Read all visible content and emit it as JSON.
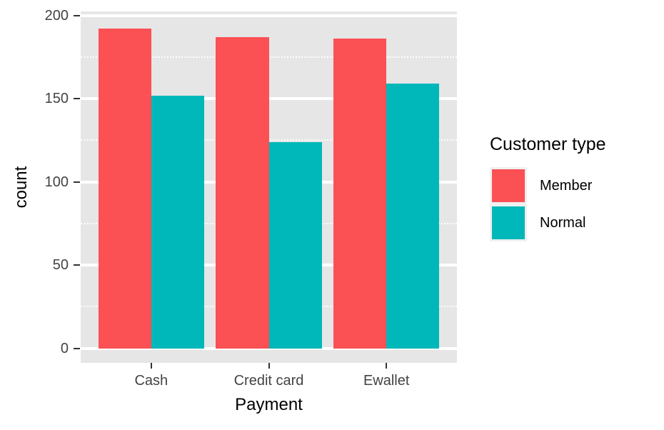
{
  "chart_data": {
    "type": "bar",
    "mode": "grouped",
    "title": "",
    "xlabel": "Payment",
    "ylabel": "count",
    "categories": [
      "Cash",
      "Credit card",
      "Ewallet"
    ],
    "series": [
      {
        "name": "Member",
        "color": "#FB5054",
        "values": [
          192,
          187,
          186
        ]
      },
      {
        "name": "Normal",
        "color": "#00B7B9",
        "values": [
          152,
          124,
          159
        ]
      }
    ],
    "ylim": [
      0,
      200
    ],
    "yticks": [
      0,
      50,
      100,
      150,
      200
    ],
    "yticks_minor": [
      25,
      75,
      125,
      175
    ],
    "grid": true,
    "legend_title": "Customer type",
    "legend_position": "right",
    "colors": {
      "panel_background": "#E6E6E6",
      "gridline": "#FFFFFF",
      "tick_text": "#434343",
      "tick_mark": "#333333",
      "title_text": "#000000"
    }
  }
}
